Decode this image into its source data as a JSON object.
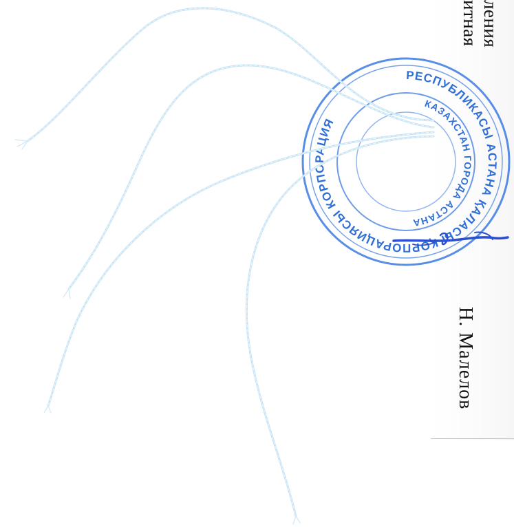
{
  "document": {
    "text_line_1": "ления",
    "text_line_2": "итная",
    "signer_name": "Н. Малелов"
  },
  "stamp": {
    "outer_ring_text": "РЕСПУБЛИКАСЫ АСТАНА ҚАЛАСЫ ҚОРПОРАЦИЯСЫ КОРПОРАЦИЯ",
    "inner_ring_text": "КАЗАХСТАН ГОРОДА АСТАНА",
    "color": "#2f6fd6"
  },
  "signature": {
    "color": "#2c4fcf"
  },
  "thread": {
    "color": "#cfe7f5"
  }
}
